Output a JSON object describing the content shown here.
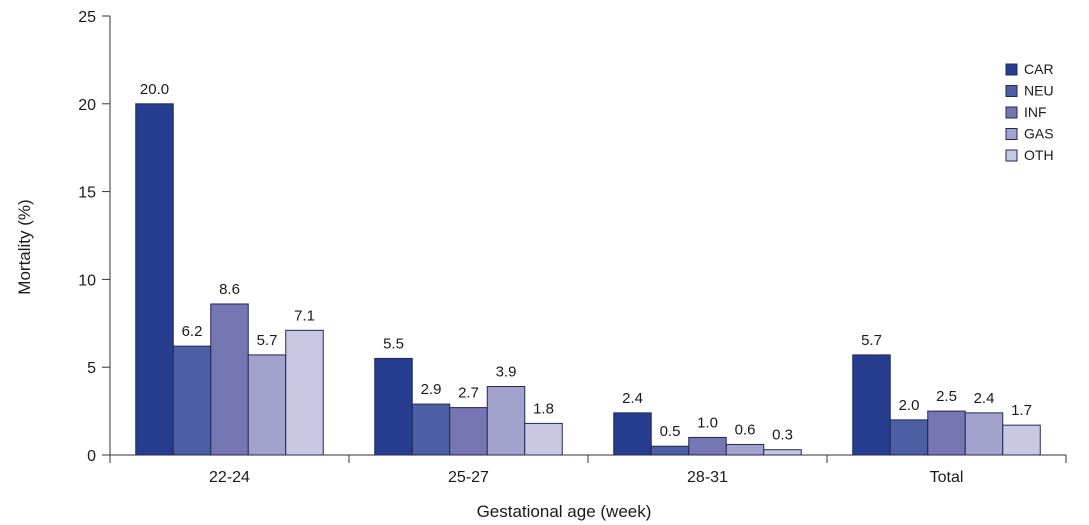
{
  "chart_data": {
    "type": "bar",
    "categories": [
      "22-24",
      "25-27",
      "28-31",
      "Total"
    ],
    "series": [
      {
        "name": "CAR",
        "values": [
          20.0,
          5.5,
          2.4,
          5.7
        ],
        "labels": [
          "20.0",
          "5.5",
          "2.4",
          "5.7"
        ],
        "color": "#273d8f"
      },
      {
        "name": "NEU",
        "values": [
          6.2,
          2.9,
          0.5,
          2.0
        ],
        "labels": [
          "6.2",
          "2.9",
          "0.5",
          "2.0"
        ],
        "color": "#4d5fa3"
      },
      {
        "name": "INF",
        "values": [
          8.6,
          2.7,
          1.0,
          2.5
        ],
        "labels": [
          "8.6",
          "2.7",
          "1.0",
          "2.5"
        ],
        "color": "#7676b3"
      },
      {
        "name": "GAS",
        "values": [
          5.7,
          3.9,
          0.6,
          2.4
        ],
        "labels": [
          "5.7",
          "3.9",
          "0.6",
          "2.4"
        ],
        "color": "#a2a2cc"
      },
      {
        "name": "OTH",
        "values": [
          7.1,
          1.8,
          0.3,
          1.7
        ],
        "labels": [
          "7.1",
          "1.8",
          "0.3",
          "1.7"
        ],
        "color": "#c8c8e2"
      }
    ],
    "xlabel": "Gestational age (week)",
    "ylabel": "Mortality (%)",
    "ylim": [
      0,
      25
    ],
    "yticks": [
      "0",
      "5",
      "10",
      "15",
      "20",
      "25"
    ],
    "grid": false,
    "legend_position": "top-right"
  }
}
